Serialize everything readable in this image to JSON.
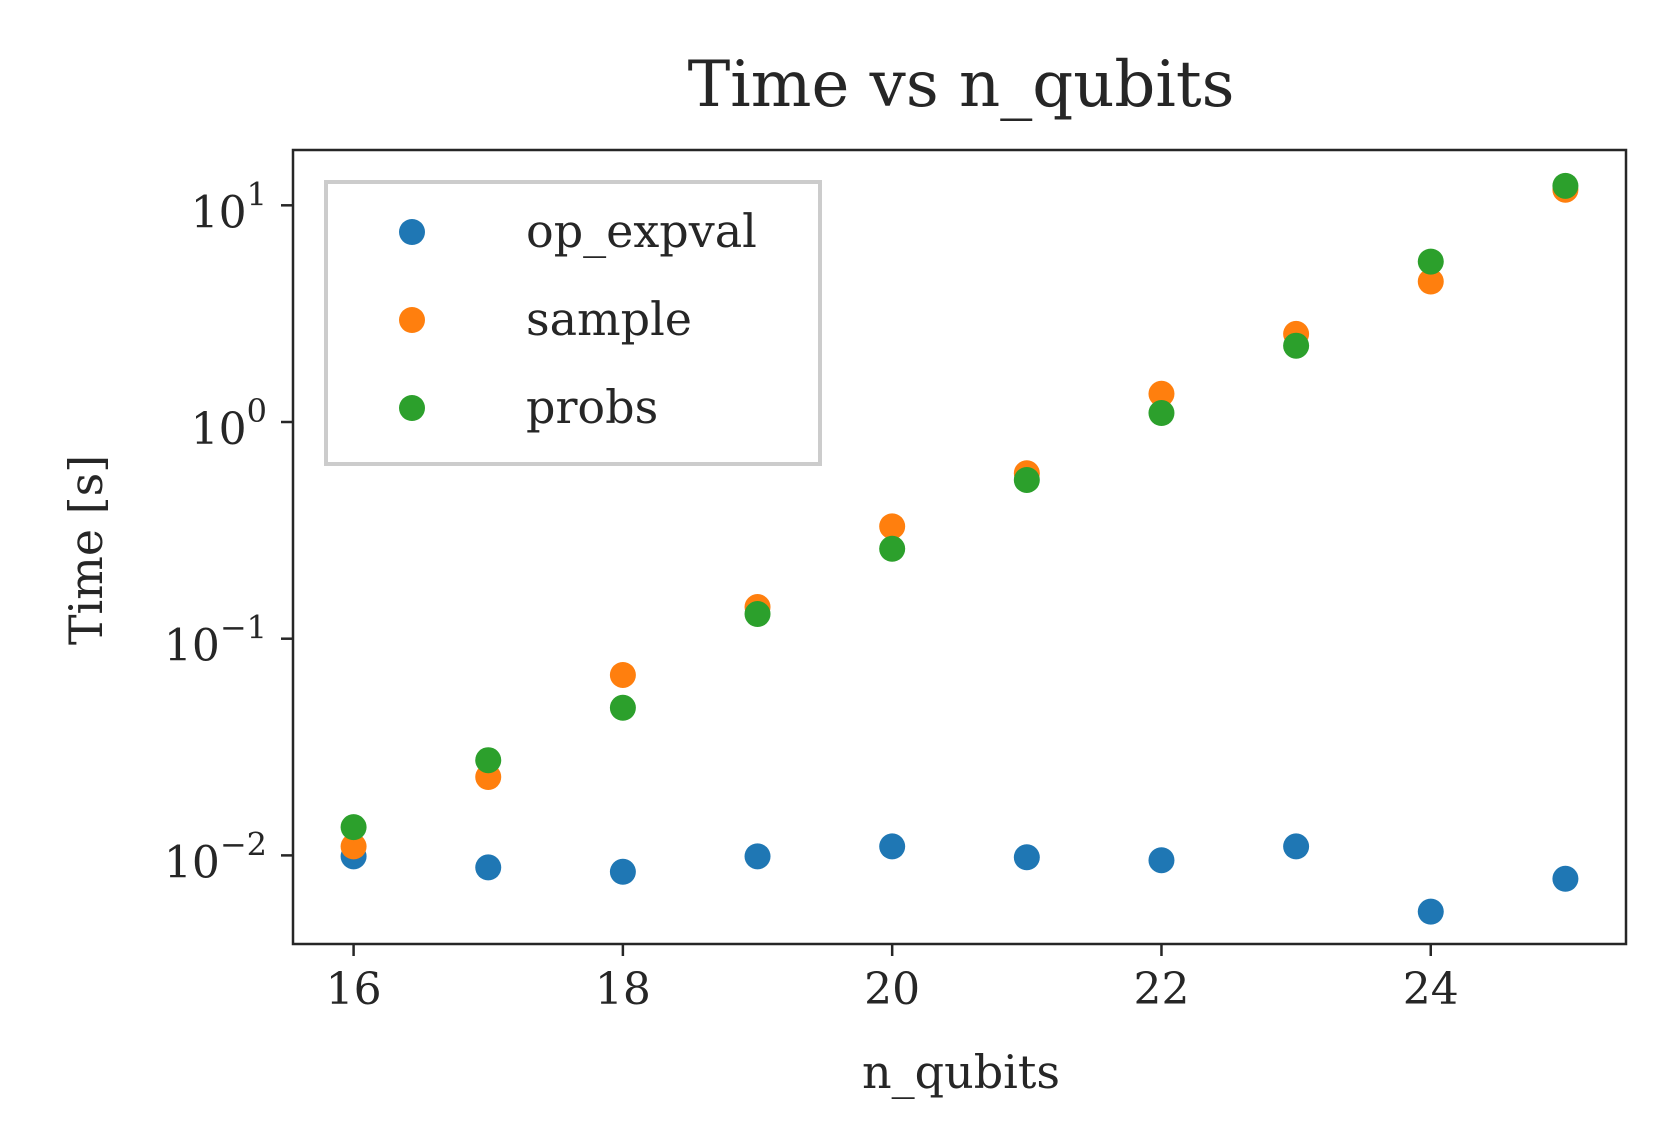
{
  "chart_data": {
    "type": "scatter",
    "title": "Time vs n_qubits",
    "xlabel": "n_qubits",
    "ylabel": "Time [s]",
    "xscale": "linear",
    "yscale": "log",
    "xlim": [
      15.55,
      25.45
    ],
    "ylim": [
      0.0039,
      18
    ],
    "xticks": [
      16,
      18,
      20,
      22,
      24
    ],
    "xtick_labels": [
      "16",
      "18",
      "20",
      "22",
      "24"
    ],
    "yticks": [
      {
        "value": 0.01,
        "base": "10",
        "exp": "−2"
      },
      {
        "value": 0.1,
        "base": "10",
        "exp": "−1"
      },
      {
        "value": 1,
        "base": "10",
        "exp": "0"
      },
      {
        "value": 10,
        "base": "10",
        "exp": "1"
      }
    ],
    "grid": false,
    "legend_position": "top-left",
    "x": [
      16,
      17,
      18,
      19,
      20,
      21,
      22,
      23,
      24,
      25
    ],
    "series": [
      {
        "name": "op_expval",
        "color": "#1f77b4",
        "values": [
          0.0099,
          0.0088,
          0.0084,
          0.0099,
          0.011,
          0.0098,
          0.0095,
          0.011,
          0.0055,
          0.0078
        ]
      },
      {
        "name": "sample",
        "color": "#ff7f0e",
        "values": [
          0.011,
          0.023,
          0.068,
          0.14,
          0.33,
          0.58,
          1.35,
          2.55,
          4.45,
          11.8
        ]
      },
      {
        "name": "probs",
        "color": "#2ca02c",
        "values": [
          0.0135,
          0.0275,
          0.048,
          0.13,
          0.26,
          0.54,
          1.1,
          2.25,
          5.5,
          12.3
        ]
      }
    ]
  }
}
